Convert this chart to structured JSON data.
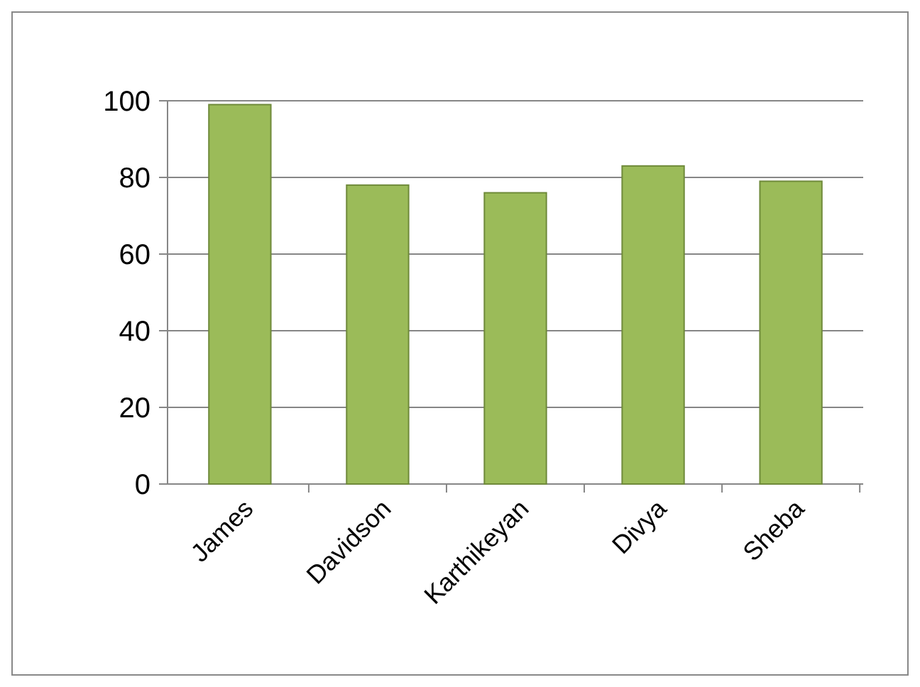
{
  "chart_data": {
    "type": "bar",
    "categories": [
      "James",
      "Davidson",
      "Karthikeyan",
      "Divya",
      "Sheba"
    ],
    "values": [
      99,
      78,
      76,
      83,
      79
    ],
    "color": "#9bbb59",
    "ylim": [
      0,
      100
    ],
    "yticks": [
      0,
      20,
      40,
      60,
      80,
      100
    ],
    "grid": "y"
  }
}
